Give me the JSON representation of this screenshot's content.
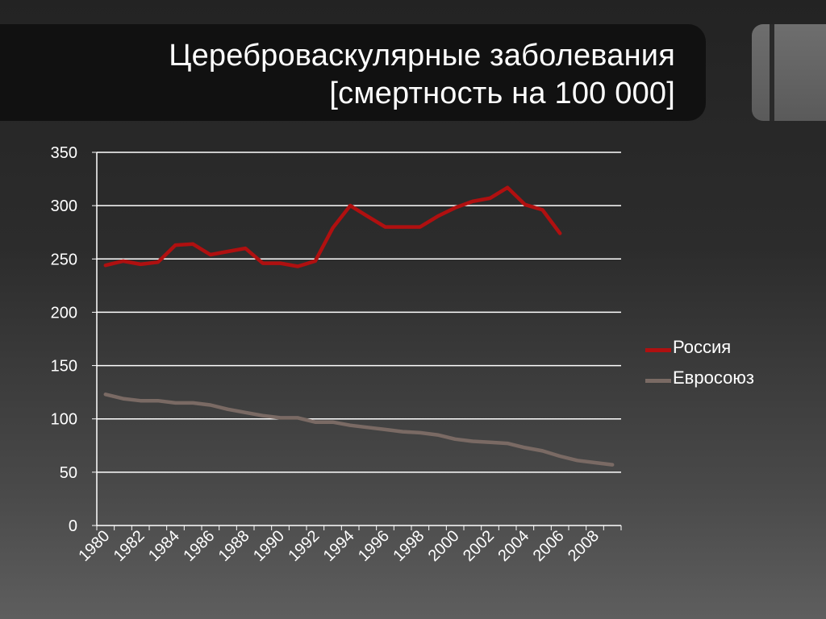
{
  "slide": {
    "title_line1": "Цереброваскулярные заболевания",
    "title_line2": "[смертность на 100 000]"
  },
  "chart_data": {
    "type": "line",
    "x": [
      1980,
      1981,
      1982,
      1983,
      1984,
      1985,
      1986,
      1987,
      1988,
      1989,
      1990,
      1991,
      1992,
      1993,
      1994,
      1995,
      1996,
      1997,
      1998,
      1999,
      2000,
      2001,
      2002,
      2003,
      2004,
      2005,
      2006,
      2007,
      2008,
      2009
    ],
    "x_tick_labels": [
      "1980",
      "1982",
      "1984",
      "1986",
      "1988",
      "1990",
      "1992",
      "1994",
      "1996",
      "1998",
      "2000",
      "2002",
      "2004",
      "2006",
      "2008"
    ],
    "y_ticks": [
      0,
      50,
      100,
      150,
      200,
      250,
      300,
      350
    ],
    "ylim": [
      0,
      350
    ],
    "grid": true,
    "legend_position": "right",
    "series": [
      {
        "name": "Россия",
        "color": "#b01010",
        "values": [
          244,
          248,
          245,
          247,
          263,
          264,
          254,
          257,
          260,
          246,
          246,
          243,
          248,
          279,
          300,
          290,
          280,
          280,
          280,
          290,
          298,
          304,
          307,
          317,
          301,
          296,
          274,
          null,
          null,
          null
        ]
      },
      {
        "name": "Евросоюз",
        "color": "#7a6a64",
        "values": [
          123,
          119,
          117,
          117,
          115,
          115,
          113,
          109,
          106,
          103,
          101,
          101,
          97,
          97,
          94,
          92,
          90,
          88,
          87,
          85,
          81,
          79,
          78,
          77,
          73,
          70,
          65,
          61,
          59,
          57
        ]
      }
    ]
  }
}
